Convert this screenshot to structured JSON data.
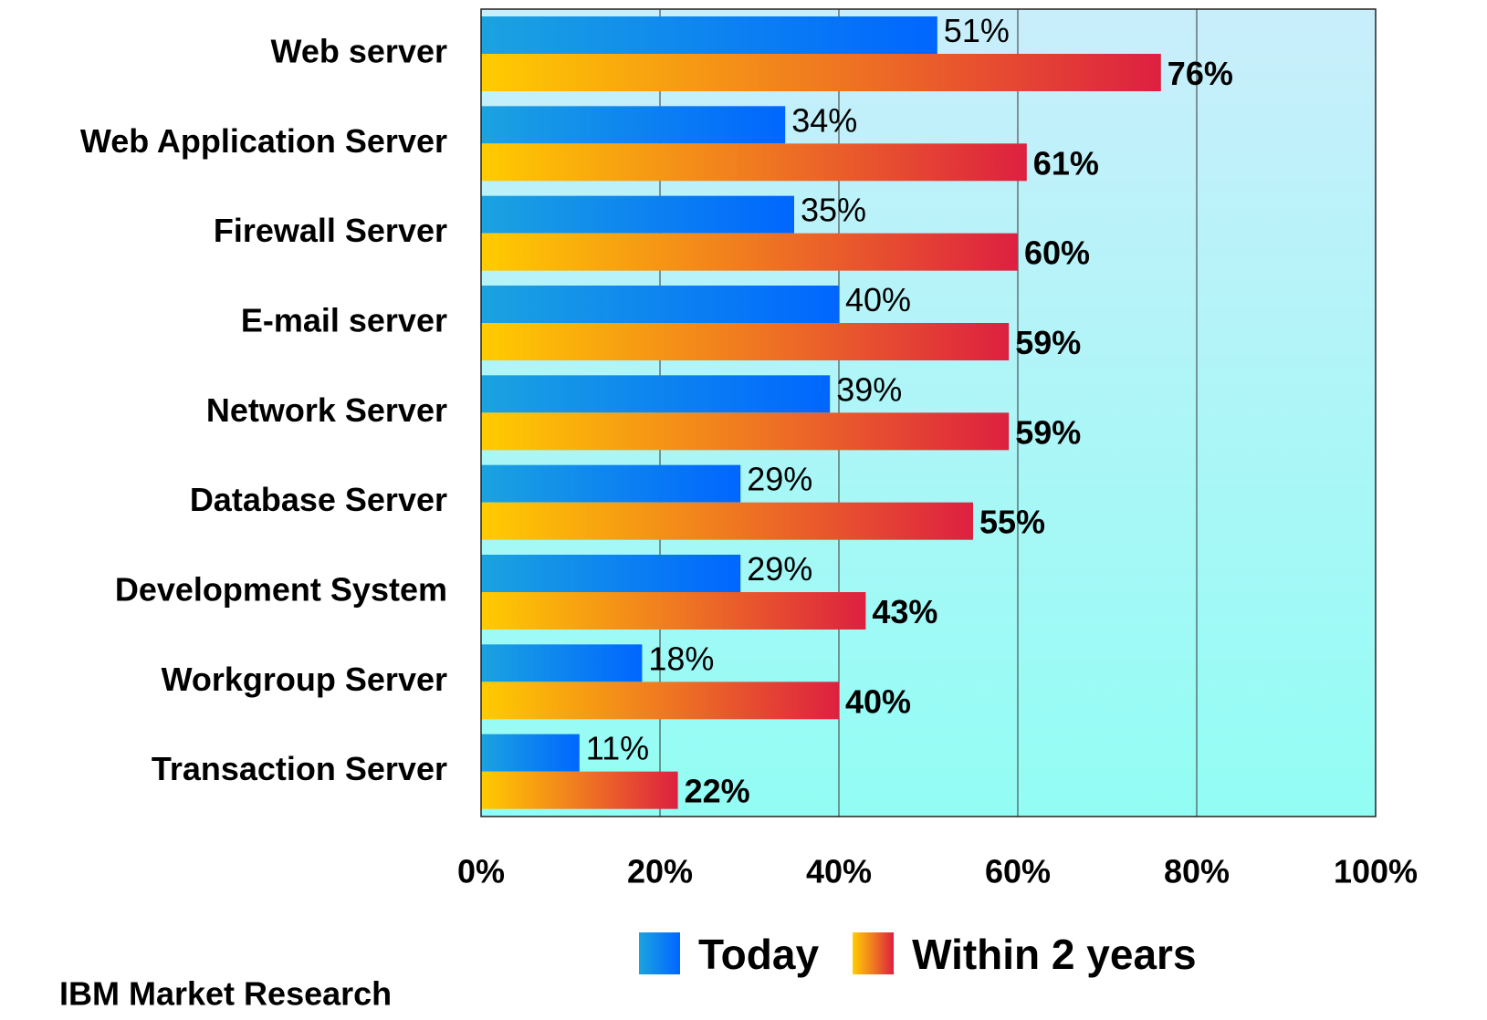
{
  "chart_data": {
    "type": "bar",
    "orientation": "horizontal",
    "categories": [
      "Web server",
      "Web Application Server",
      "Firewall Server",
      "E-mail server",
      "Network Server",
      "Database Server",
      "Development System",
      "Workgroup Server",
      "Transaction Server"
    ],
    "series": [
      {
        "name": "Today",
        "color": "#0066ff",
        "values": [
          51,
          34,
          35,
          40,
          39,
          29,
          29,
          18,
          11
        ],
        "value_labels": [
          "51%",
          "34%",
          "35%",
          "40%",
          "39%",
          "29%",
          "29%",
          "18%",
          "11%"
        ]
      },
      {
        "name": "Within 2 years",
        "color": "#dd2040",
        "values": [
          76,
          61,
          60,
          59,
          59,
          55,
          43,
          40,
          22
        ],
        "value_labels": [
          "76%",
          "61%",
          "60%",
          "59%",
          "59%",
          "55%",
          "43%",
          "40%",
          "22%"
        ]
      }
    ],
    "xlim": [
      0,
      100
    ],
    "xticks": [
      {
        "value": 0,
        "label": "0%"
      },
      {
        "value": 20,
        "label": "20%"
      },
      {
        "value": 40,
        "label": "40%"
      },
      {
        "value": 60,
        "label": "60%"
      },
      {
        "value": 80,
        "label": "80%"
      },
      {
        "value": 100,
        "label": "100%"
      }
    ],
    "grid": true,
    "legend": "bottom",
    "source": "IBM Market Research"
  }
}
